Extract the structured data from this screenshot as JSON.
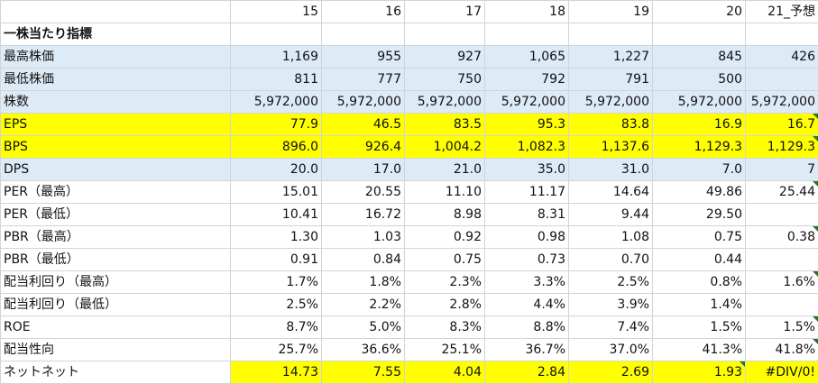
{
  "header": {
    "years": [
      "15",
      "16",
      "17",
      "18",
      "19",
      "20",
      "21_予想"
    ]
  },
  "rows": [
    {
      "label": "一株当たり指標",
      "values": [
        "",
        "",
        "",
        "",
        "",
        "",
        ""
      ]
    },
    {
      "label": "最高株価",
      "values": [
        "1,169",
        "955",
        "927",
        "1,065",
        "1,227",
        "845",
        "426"
      ]
    },
    {
      "label": "最低株価",
      "values": [
        "811",
        "777",
        "750",
        "792",
        "791",
        "500",
        ""
      ]
    },
    {
      "label": "株数",
      "values": [
        "5,972,000",
        "5,972,000",
        "5,972,000",
        "5,972,000",
        "5,972,000",
        "5,972,000",
        "5,972,000"
      ]
    },
    {
      "label": "EPS",
      "values": [
        "77.9",
        "46.5",
        "83.5",
        "95.3",
        "83.8",
        "16.9",
        "16.7"
      ]
    },
    {
      "label": "BPS",
      "values": [
        "896.0",
        "926.4",
        "1,004.2",
        "1,082.3",
        "1,137.6",
        "1,129.3",
        "1,129.3"
      ]
    },
    {
      "label": "DPS",
      "values": [
        "20.0",
        "17.0",
        "21.0",
        "35.0",
        "31.0",
        "7.0",
        "7"
      ]
    },
    {
      "label": "PER（最高）",
      "values": [
        "15.01",
        "20.55",
        "11.10",
        "11.17",
        "14.64",
        "49.86",
        "25.44"
      ]
    },
    {
      "label": "PER（最低）",
      "values": [
        "10.41",
        "16.72",
        "8.98",
        "8.31",
        "9.44",
        "29.50",
        ""
      ]
    },
    {
      "label": "PBR（最高）",
      "values": [
        "1.30",
        "1.03",
        "0.92",
        "0.98",
        "1.08",
        "0.75",
        "0.38"
      ]
    },
    {
      "label": "PBR（最低）",
      "values": [
        "0.91",
        "0.84",
        "0.75",
        "0.73",
        "0.70",
        "0.44",
        ""
      ]
    },
    {
      "label": "配当利回り（最高）",
      "values": [
        "1.7%",
        "1.8%",
        "2.3%",
        "3.3%",
        "2.5%",
        "0.8%",
        "1.6%"
      ]
    },
    {
      "label": "配当利回り（最低）",
      "values": [
        "2.5%",
        "2.2%",
        "2.8%",
        "4.4%",
        "3.9%",
        "1.4%",
        ""
      ]
    },
    {
      "label": "ROE",
      "values": [
        "8.7%",
        "5.0%",
        "8.3%",
        "8.8%",
        "7.4%",
        "1.5%",
        "1.5%"
      ]
    },
    {
      "label": "配当性向",
      "values": [
        "25.7%",
        "36.6%",
        "25.1%",
        "36.7%",
        "37.0%",
        "41.3%",
        "41.8%"
      ]
    },
    {
      "label": "ネットネット",
      "values": [
        "14.73",
        "7.55",
        "4.04",
        "2.84",
        "2.69",
        "1.93",
        "#DIV/0!"
      ]
    }
  ],
  "colors": {
    "light_blue_fill": "#ddebf7",
    "yellow_fill": "#ffff00",
    "gridline": "#d4d4d4",
    "error_indicator": "#1f7a1f"
  }
}
